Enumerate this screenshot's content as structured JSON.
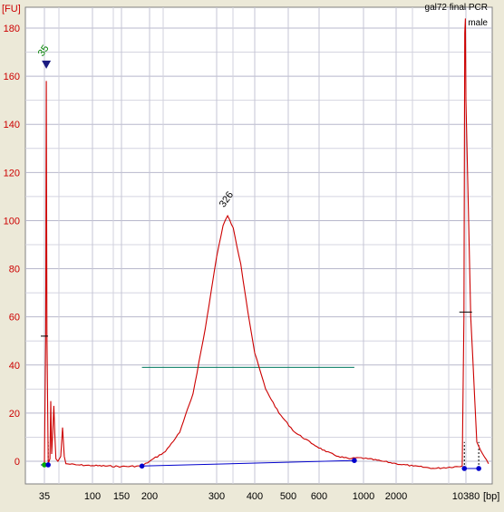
{
  "chart_data": {
    "type": "line",
    "title": "gal72 final PCR",
    "subtitle": "male",
    "ylabel": "[FU]",
    "xlabel": "[bp]",
    "ylim": [
      -5,
      185
    ],
    "yticks": [
      0,
      20,
      40,
      60,
      80,
      100,
      120,
      140,
      160,
      180
    ],
    "x_ticks_bp": [
      "35",
      "100",
      "150",
      "200",
      "300",
      "400",
      "500",
      "600",
      "1000",
      "2000",
      "10380"
    ],
    "peak_labels": [
      "35",
      "326"
    ],
    "markers": {
      "lower": "35",
      "upper": "10380"
    },
    "colors": {
      "trace": "#CC0000",
      "baseline": "#0000CC",
      "smear_range": "#007A5E",
      "axis_text": "#CC0000",
      "lower_marker_label": "#008000"
    },
    "series": [
      {
        "values_description_note": "",
        "points": [
          [
            35,
            -1.5
          ],
          [
            36,
            52
          ],
          [
            36.5,
            158
          ],
          [
            37,
            52
          ],
          [
            38,
            -1
          ],
          [
            39.5,
            1
          ],
          [
            40.2,
            25
          ],
          [
            41,
            3
          ],
          [
            42,
            12
          ],
          [
            43,
            23
          ],
          [
            44,
            10
          ],
          [
            45,
            1
          ],
          [
            47,
            0
          ],
          [
            50,
            2
          ],
          [
            52,
            14
          ],
          [
            54,
            2
          ],
          [
            56,
            -1
          ],
          [
            70,
            -1.5
          ],
          [
            100,
            -1.8
          ],
          [
            150,
            -2.2
          ],
          [
            185,
            -2
          ],
          [
            200,
            0
          ],
          [
            220,
            4
          ],
          [
            240,
            12
          ],
          [
            260,
            28
          ],
          [
            280,
            55
          ],
          [
            300,
            85
          ],
          [
            315,
            98
          ],
          [
            326,
            102
          ],
          [
            340,
            97
          ],
          [
            360,
            82
          ],
          [
            380,
            62
          ],
          [
            400,
            45
          ],
          [
            430,
            30
          ],
          [
            470,
            20
          ],
          [
            520,
            12
          ],
          [
            580,
            7
          ],
          [
            650,
            4
          ],
          [
            750,
            2
          ],
          [
            850,
            1
          ],
          [
            950,
            1.5
          ],
          [
            1100,
            1
          ],
          [
            1500,
            0
          ],
          [
            2000,
            -1
          ],
          [
            3000,
            -2
          ],
          [
            5000,
            -3
          ],
          [
            9500,
            -2
          ],
          [
            9900,
            60
          ],
          [
            10100,
            178
          ],
          [
            10250,
            184
          ],
          [
            10380,
            150
          ],
          [
            10500,
            60
          ],
          [
            10650,
            8
          ],
          [
            10800,
            3
          ],
          [
            10950,
            -1
          ]
        ]
      }
    ]
  }
}
